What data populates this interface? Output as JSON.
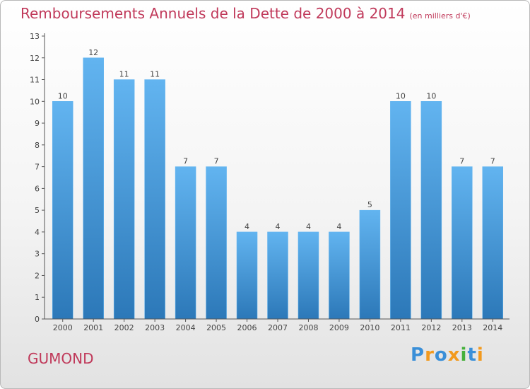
{
  "chart_data": {
    "type": "bar",
    "title": "Remboursements Annuels de la Dette de 2000 à 2014",
    "subtitle": "(en milliers d'€)",
    "categories": [
      "2000",
      "2001",
      "2002",
      "2003",
      "2004",
      "2005",
      "2006",
      "2007",
      "2008",
      "2009",
      "2010",
      "2011",
      "2012",
      "2013",
      "2014"
    ],
    "values": [
      10,
      12,
      11,
      11,
      7,
      7,
      4,
      4,
      4,
      4,
      5,
      10,
      10,
      7,
      7
    ],
    "xlabel": "",
    "ylabel": "",
    "ylim": [
      0,
      13
    ],
    "yticks": [
      0,
      1,
      2,
      3,
      4,
      5,
      6,
      7,
      8,
      9,
      10,
      11,
      12,
      13
    ],
    "bar_color": "#3f94d6",
    "bar_color_light": "#62b4f0",
    "bar_color_dark": "#2c78b8"
  },
  "place_name": "GUMOND",
  "logo": {
    "letters": [
      "P",
      "r",
      "o",
      "x",
      "i",
      "t",
      "i"
    ],
    "colors": [
      "#3a8fd8",
      "#f29a1e",
      "#3a8fd8",
      "#f29a1e",
      "#45b03b",
      "#3a8fd8",
      "#f29a1e"
    ]
  },
  "colors": {
    "title": "#c0395a",
    "axis": "#555555"
  }
}
